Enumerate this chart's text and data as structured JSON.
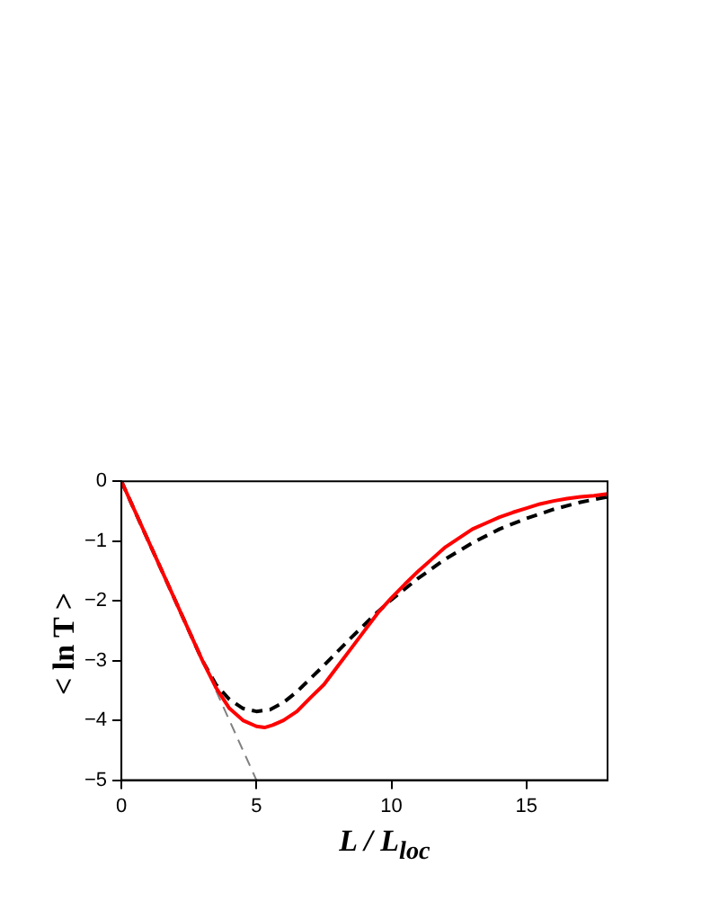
{
  "chart_data": {
    "type": "line",
    "xlabel": "L / L$_{loc}$",
    "ylabel": "< ln T >",
    "xlim": [
      0,
      18
    ],
    "ylim": [
      -5,
      0
    ],
    "xticks": [
      0,
      5,
      10,
      15
    ],
    "yticks": [
      -5,
      -4,
      -3,
      -2,
      -1,
      0
    ],
    "grid": false,
    "legend": false,
    "marker": "none",
    "series": [
      {
        "color": "#ff0000",
        "line_style": "solid",
        "x": [
          0,
          1,
          2,
          3,
          3.5,
          4,
          4.5,
          5,
          5.3,
          5.6,
          6,
          6.5,
          7,
          7.5,
          8,
          8.5,
          9,
          9.5,
          10,
          10.5,
          11,
          11.5,
          12,
          12.5,
          13,
          13.5,
          14,
          14.5,
          15,
          15.5,
          16,
          16.5,
          17,
          17.5,
          18
        ],
        "values": [
          0,
          -1,
          -2,
          -3,
          -3.45,
          -3.8,
          -4.0,
          -4.1,
          -4.12,
          -4.08,
          -4.0,
          -3.85,
          -3.62,
          -3.4,
          -3.1,
          -2.8,
          -2.5,
          -2.2,
          -1.95,
          -1.72,
          -1.5,
          -1.3,
          -1.1,
          -0.95,
          -0.8,
          -0.7,
          -0.6,
          -0.52,
          -0.45,
          -0.38,
          -0.33,
          -0.29,
          -0.26,
          -0.24,
          -0.21
        ]
      },
      {
        "color": "#000000",
        "line_style": "dashed",
        "x": [
          0,
          3,
          3.5,
          4,
          4.5,
          5,
          5.5,
          6,
          6.5,
          7,
          7.5,
          8,
          8.5,
          9,
          9.5,
          10,
          11,
          12,
          13,
          14,
          15,
          16,
          17,
          18
        ],
        "values": [
          0,
          -3,
          -3.4,
          -3.65,
          -3.8,
          -3.85,
          -3.82,
          -3.7,
          -3.52,
          -3.3,
          -3.08,
          -2.85,
          -2.62,
          -2.4,
          -2.18,
          -1.98,
          -1.62,
          -1.3,
          -1.03,
          -0.8,
          -0.62,
          -0.47,
          -0.35,
          -0.26
        ]
      },
      {
        "color": "#808080",
        "line_style": "dashed",
        "x": [
          3.5,
          5
        ],
        "values": [
          -3.5,
          -5
        ]
      }
    ]
  }
}
